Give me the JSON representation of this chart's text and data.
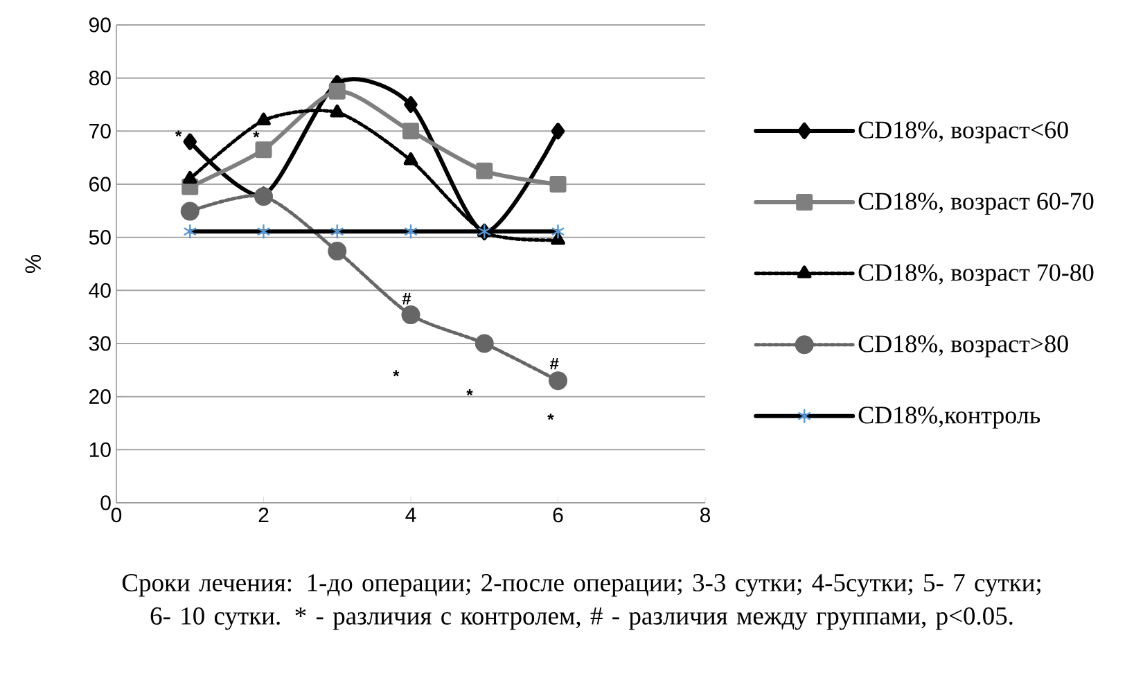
{
  "chart_data": {
    "type": "line",
    "ylabel": "%",
    "x": [
      1,
      2,
      3,
      4,
      5,
      6
    ],
    "xlim": [
      0,
      8
    ],
    "xticks": [
      0,
      2,
      4,
      6,
      8
    ],
    "ylim": [
      0,
      90
    ],
    "yticks": [
      0,
      10,
      20,
      30,
      40,
      50,
      60,
      70,
      80,
      90
    ],
    "grid": "y",
    "legend": "right",
    "series": [
      {
        "name": "CD18%, возраст<60",
        "color": "#000000",
        "marker": "diamond",
        "line_style": "solid",
        "values": [
          68,
          58,
          79,
          75,
          51,
          70
        ]
      },
      {
        "name": "CD18%, возраст 60-70",
        "color": "#7f7f7f",
        "marker": "square",
        "line_style": "solid",
        "values": [
          59.5,
          66.5,
          77.5,
          70,
          62.5,
          60
        ]
      },
      {
        "name": "CD18%,  возраст 70-80",
        "color": "#000000",
        "marker": "triangle",
        "line_style": "dotted",
        "values": [
          61,
          72,
          73.5,
          64.5,
          51,
          49.5
        ]
      },
      {
        "name": "CD18%, возраст>80",
        "color": "#666666",
        "marker": "circle",
        "line_style": "dotted",
        "values": [
          54.9,
          57.7,
          47.4,
          35.4,
          30,
          23
        ]
      },
      {
        "name": "CD18%,контроль",
        "color": "#000000",
        "marker": "cross",
        "line_style": "solid",
        "values": [
          51.1,
          51.1,
          51.1,
          51.1,
          51.1,
          51.1
        ]
      }
    ],
    "annotations": [
      {
        "text": "*",
        "x": 0.9,
        "y": 66.7
      },
      "*",
      {
        "text": "#",
        "x": 4.0,
        "y": 36.1
      },
      "*",
      "*",
      "#",
      "*",
      "Сроки лечения: 1-до операции; 2-после операции; 3-3 сутки; 4-5сутки; 5- 7 сутки; 6- 10 сутки. * - различия с контролем, # - различия между группами, p<0.05."
    ]
  }
}
